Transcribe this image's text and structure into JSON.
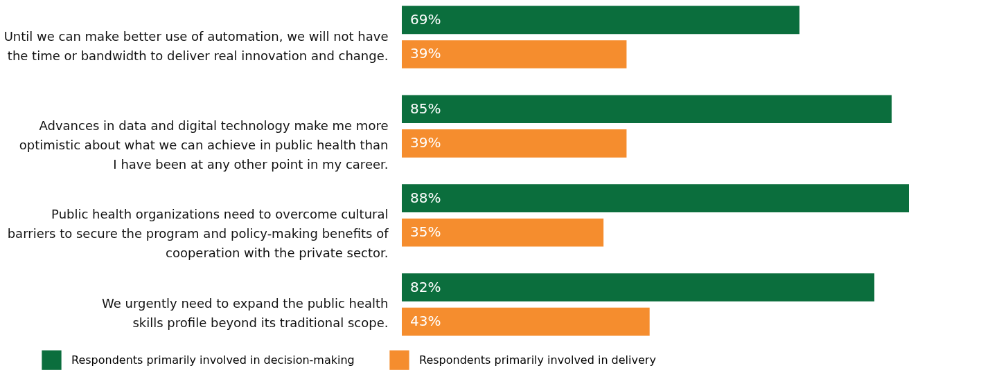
{
  "chart_data": {
    "type": "bar",
    "orientation": "horizontal",
    "categories": [
      "Until we can make better use of automation, we will not have\nthe time or bandwidth to deliver real innovation and change.",
      "Advances in data and digital technology make me more\noptimistic about what we can achieve in public health than\nI have been at any other point in my career.",
      "Public health organizations need to overcome cultural\nbarriers to secure the program and policy-making benefits of\ncooperation with the private sector.",
      "We urgently need to expand the public health\nskills profile beyond its traditional scope."
    ],
    "series": [
      {
        "name": "Respondents primarily involved in decision-making",
        "color": "#0b6e3d",
        "values": [
          69,
          85,
          88,
          82
        ],
        "value_labels": [
          "69%",
          "85%",
          "88%",
          "82%"
        ]
      },
      {
        "name": "Respondents primarily involved in delivery",
        "color": "#f58d2e",
        "values": [
          39,
          39,
          35,
          43
        ],
        "value_labels": [
          "39%",
          "39%",
          "35%",
          "43%"
        ]
      }
    ],
    "xlim": [
      0,
      88
    ],
    "tick_labels": "y",
    "legend": "bottom"
  }
}
